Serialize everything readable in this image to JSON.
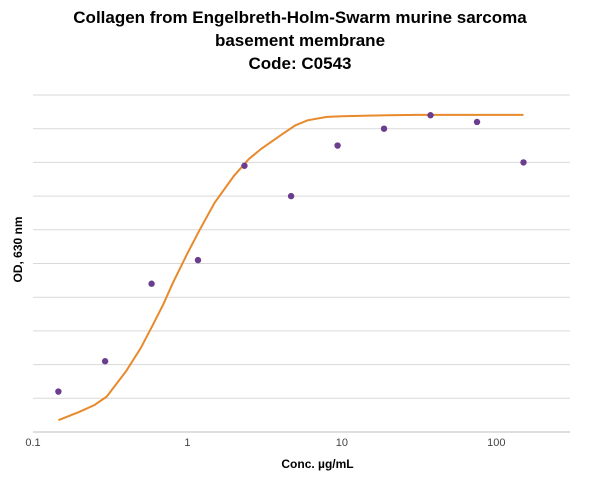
{
  "chart_data": {
    "type": "scatter",
    "title_lines": [
      "Collagen from Engelbreth-Holm-Swarm murine sarcoma",
      "basement membrane",
      "Code: C0543"
    ],
    "xlabel": "Conc. µg/mL",
    "ylabel": "OD, 630 nm",
    "x_scale": "log",
    "xlim": [
      0.1,
      300
    ],
    "x_ticks": [
      0.1,
      1,
      10,
      100
    ],
    "x_tick_labels": [
      "0.1",
      "1",
      "10",
      "100"
    ],
    "ylim": [
      0,
      1
    ],
    "y_grid_count": 10,
    "grid": "horizontal",
    "series": [
      {
        "kind": "points",
        "color": "#6a3d8f",
        "x": [
          0.146,
          0.293,
          0.586,
          1.17,
          2.34,
          4.69,
          9.38,
          18.75,
          37.5,
          75,
          150
        ],
        "y": [
          0.12,
          0.21,
          0.44,
          0.51,
          0.79,
          0.7,
          0.85,
          0.9,
          0.94,
          0.92,
          0.8
        ]
      },
      {
        "kind": "fit-line",
        "color": "#e8892b",
        "x": [
          0.146,
          0.2,
          0.25,
          0.3,
          0.4,
          0.5,
          0.6,
          0.7,
          0.8,
          1.0,
          1.2,
          1.5,
          2.0,
          2.5,
          3.0,
          4.0,
          5.0,
          6.0,
          8.0,
          10,
          15,
          20,
          30,
          50,
          75,
          100,
          150
        ],
        "y": [
          0.035,
          0.06,
          0.08,
          0.105,
          0.18,
          0.25,
          0.32,
          0.38,
          0.44,
          0.53,
          0.6,
          0.68,
          0.76,
          0.81,
          0.84,
          0.88,
          0.91,
          0.925,
          0.935,
          0.937,
          0.939,
          0.94,
          0.941,
          0.941,
          0.941,
          0.941,
          0.941
        ]
      }
    ]
  }
}
